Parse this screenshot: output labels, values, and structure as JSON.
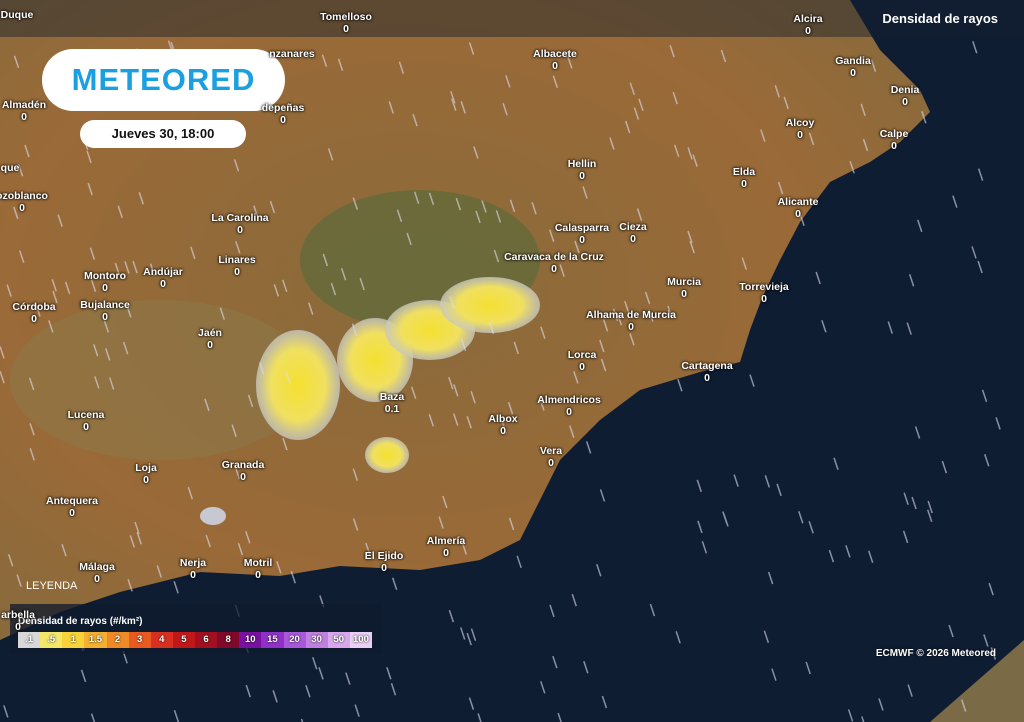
{
  "brand": "METEORED",
  "date": "Jueves 30, 18:00",
  "layer": "Densidad de rayos",
  "cities": [
    {
      "name": "Duque"
    },
    {
      "name": "Tomelloso",
      "value": 0
    },
    {
      "name": "Alcira",
      "value": 0
    },
    {
      "name": "nzanares"
    },
    {
      "name": "Albacete",
      "value": 0
    },
    {
      "name": "Gandia",
      "value": 0
    },
    {
      "name": "Almadén",
      "value": 0
    },
    {
      "name": "depeñas",
      "value": 0
    },
    {
      "name": "Denia",
      "value": 0
    },
    {
      "name": "Alcoy",
      "value": 0
    },
    {
      "name": "Calpe",
      "value": 0
    },
    {
      "name": "que"
    },
    {
      "name": "Hellin",
      "value": 0
    },
    {
      "name": "Elda",
      "value": 0
    },
    {
      "name": "ozoblanco",
      "value": 0
    },
    {
      "name": "La Carolina",
      "value": 0
    },
    {
      "name": "Alicante",
      "value": 0
    },
    {
      "name": "Calasparra",
      "value": 0
    },
    {
      "name": "Cieza",
      "value": 0
    },
    {
      "name": "Linares",
      "value": 0
    },
    {
      "name": "Caravaca de la Cruz",
      "value": 0
    },
    {
      "name": "Montoro",
      "value": 0
    },
    {
      "name": "Andújar",
      "value": 0
    },
    {
      "name": "Murcia",
      "value": 0
    },
    {
      "name": "Torrevieja",
      "value": 0
    },
    {
      "name": "Córdoba",
      "value": 0
    },
    {
      "name": "Bujalance",
      "value": 0
    },
    {
      "name": "Alhama de Murcia",
      "value": 0
    },
    {
      "name": "Jaén",
      "value": 0
    },
    {
      "name": "Lorca",
      "value": 0
    },
    {
      "name": "Cartagena",
      "value": 0
    },
    {
      "name": "Baza",
      "value": 0.1
    },
    {
      "name": "Almendricos",
      "value": 0
    },
    {
      "name": "Lucena",
      "value": 0
    },
    {
      "name": "Albox",
      "value": 0
    },
    {
      "name": "Vera",
      "value": 0
    },
    {
      "name": "Loja",
      "value": 0
    },
    {
      "name": "Granada",
      "value": 0
    },
    {
      "name": "Antequera",
      "value": 0
    },
    {
      "name": "Almería",
      "value": 0
    },
    {
      "name": "El Ejido",
      "value": 0
    },
    {
      "name": "Málaga",
      "value": 0
    },
    {
      "name": "Nerja",
      "value": 0
    },
    {
      "name": "Motril",
      "value": 0
    },
    {
      "name": "arbella",
      "value": 0
    }
  ],
  "legend": {
    "heading": "LEYENDA",
    "title": "Densidad de rayos (#/km²)",
    "steps": [
      ".1",
      ".5",
      "1",
      "1.5",
      "2",
      "3",
      "4",
      "5",
      "6",
      "8",
      "10",
      "15",
      "20",
      "30",
      "50",
      "100"
    ]
  },
  "credit": "ECMWF © 2026 Meteored"
}
